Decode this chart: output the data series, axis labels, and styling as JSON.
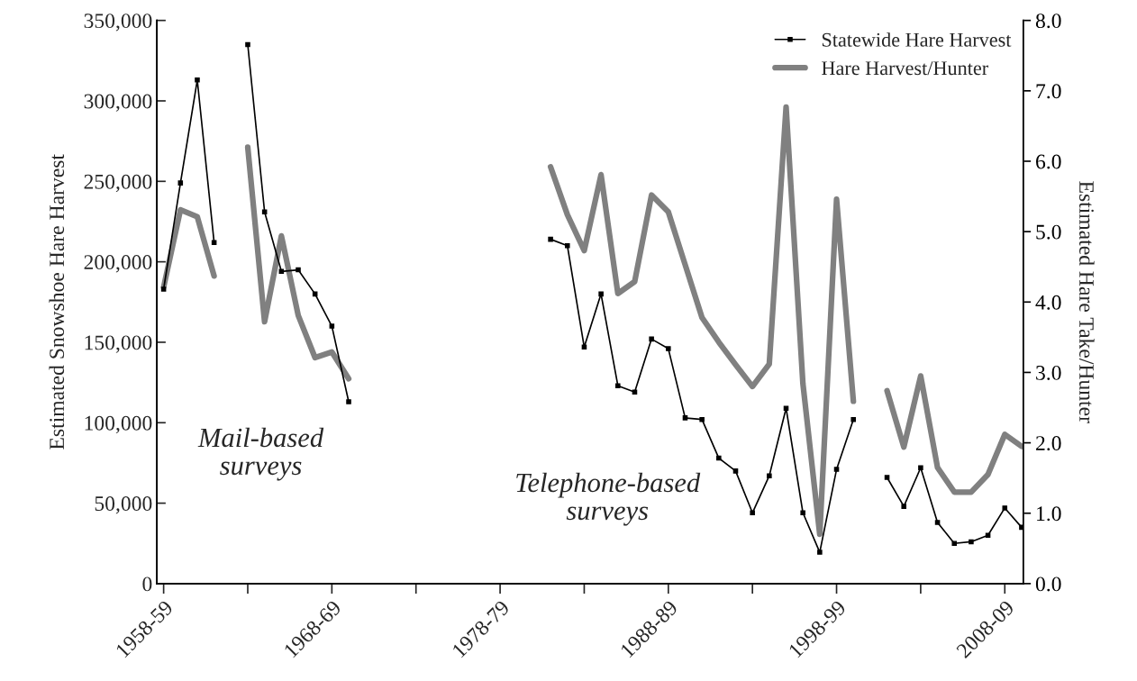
{
  "chart_data": {
    "type": "line",
    "categories": [
      "1958-59",
      null,
      null,
      null,
      null,
      null,
      null,
      null,
      null,
      null,
      "1968-69",
      null,
      null,
      null,
      null,
      null,
      null,
      null,
      null,
      null,
      "1978-79",
      null,
      null,
      null,
      null,
      null,
      null,
      null,
      null,
      null,
      "1988-89",
      null,
      null,
      null,
      null,
      null,
      null,
      null,
      null,
      null,
      "1998-99",
      null,
      null,
      null,
      null,
      null,
      null,
      null,
      null,
      null,
      "2008-09",
      null
    ],
    "series": [
      {
        "name": "Statewide Hare Harvest",
        "color": "#000000",
        "marker": "square",
        "values": [
          183000,
          249000,
          313000,
          212000,
          null,
          335000,
          231000,
          194000,
          195000,
          180000,
          160000,
          113000,
          null,
          null,
          null,
          null,
          null,
          null,
          null,
          null,
          null,
          null,
          null,
          214000,
          210000,
          147000,
          180000,
          123000,
          119000,
          152000,
          146000,
          103000,
          102000,
          78000,
          70000,
          44000,
          67000,
          109000,
          44000,
          19500,
          71000,
          102000,
          null,
          66000,
          48000,
          72000,
          38000,
          25000,
          26000,
          30000,
          47000,
          35000
        ]
      },
      {
        "name": "Hare Harvest/Hunter",
        "color": "#808080",
        "axis": "y2",
        "values": [
          4.21,
          5.31,
          5.21,
          4.37,
          null,
          6.2,
          3.72,
          4.94,
          3.81,
          3.21,
          3.29,
          2.91,
          null,
          null,
          null,
          null,
          null,
          null,
          null,
          null,
          null,
          null,
          null,
          5.92,
          5.24,
          4.73,
          5.81,
          4.12,
          4.29,
          5.52,
          5.28,
          4.53,
          3.78,
          3.43,
          3.11,
          2.8,
          3.12,
          6.77,
          2.84,
          0.7,
          5.46,
          2.59,
          null,
          2.74,
          1.94,
          2.95,
          1.65,
          1.3,
          1.3,
          1.55,
          2.12,
          1.95
        ]
      }
    ],
    "ylabel": "Estimated Snowshoe Hare Harvest",
    "y2label": "Estimated Hare Take/Hunter",
    "ylim": [
      0,
      350000
    ],
    "yticks": [
      0,
      {
        "value": 50000,
        "label": "50,000"
      },
      {
        "value": 100000,
        "label": "100,000"
      },
      {
        "value": 150000,
        "label": "150,000"
      },
      {
        "value": 200000,
        "label": "200,000"
      },
      {
        "value": 250000,
        "label": "250,000"
      },
      {
        "value": 300000,
        "label": "300,000"
      },
      {
        "value": 350000,
        "label": "350,000"
      }
    ],
    "y2lim": [
      0,
      8
    ],
    "y2ticks": [
      {
        "value": 0,
        "label": "0.0"
      },
      {
        "value": 1,
        "label": "1.0"
      },
      {
        "value": 2,
        "label": "2.0"
      },
      {
        "value": 3,
        "label": "3.0"
      },
      {
        "value": 4,
        "label": "4.0"
      },
      {
        "value": 5,
        "label": "5.0"
      },
      {
        "value": 6,
        "label": "6.0"
      },
      {
        "value": 7,
        "label": "7.0"
      },
      {
        "value": 8,
        "label": "8.0"
      }
    ],
    "annotations": [
      "Mail-based\nsurveys",
      "Telephone-based\nsurveys"
    ],
    "legend": "top right",
    "grid": false
  }
}
